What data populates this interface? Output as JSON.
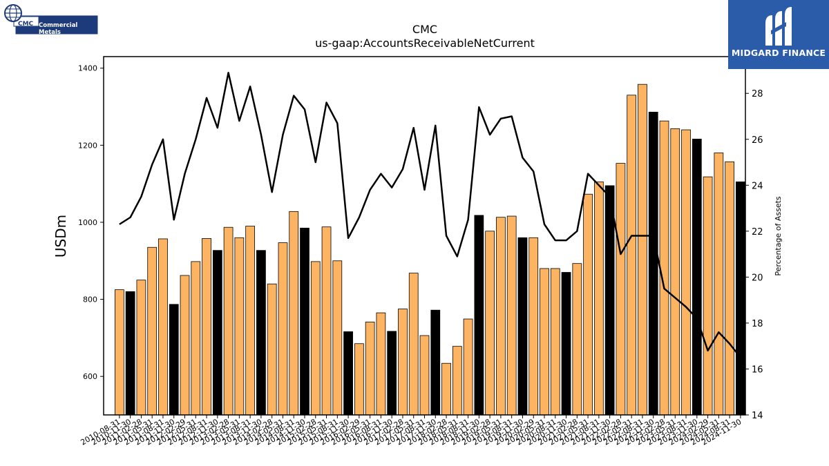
{
  "branding": {
    "left_logo_cmc": "CMC",
    "left_logo_name": "Commercial Metals",
    "right_logo_name": "MIDGARD FINANCE",
    "right_logo_bg": "#2a5caa",
    "left_logo_color": "#1d3a7a"
  },
  "chart_data": {
    "type": "bar",
    "title": "CMC",
    "subtitle": "us-gaap:AccountsReceivableNetCurrent",
    "ylabel": "USDm",
    "y2label": "Percentage of Assets",
    "ylim": [
      500,
      1430
    ],
    "y2lim": [
      14,
      29.6
    ],
    "yticks": [
      600,
      800,
      1000,
      1200,
      1400
    ],
    "y2ticks": [
      14,
      16,
      18,
      20,
      22,
      24,
      26,
      28
    ],
    "bar_colors": {
      "orange": "#fdb462",
      "black": "#000000"
    },
    "line_color": "#000000",
    "categories": [
      "2010-08-31",
      "2010-11-30",
      "2011-02-28",
      "2011-05-31",
      "2011-08-31",
      "2011-11-30",
      "2012-02-29",
      "2012-05-31",
      "2012-08-31",
      "2012-11-30",
      "2013-02-28",
      "2013-05-31",
      "2013-08-31",
      "2013-11-30",
      "2014-02-28",
      "2014-05-31",
      "2014-08-31",
      "2014-11-30",
      "2015-02-28",
      "2015-05-31",
      "2015-08-31",
      "2015-11-30",
      "2016-02-29",
      "2016-05-31",
      "2016-08-31",
      "2016-11-30",
      "2017-02-28",
      "2017-05-31",
      "2017-08-31",
      "2017-11-30",
      "2018-02-28",
      "2018-05-31",
      "2018-08-31",
      "2018-11-30",
      "2019-02-28",
      "2019-05-31",
      "2019-08-31",
      "2019-11-30",
      "2020-02-29",
      "2020-05-31",
      "2020-08-31",
      "2020-11-30",
      "2021-02-28",
      "2021-05-31",
      "2021-08-31",
      "2021-11-30",
      "2022-02-28",
      "2022-05-31",
      "2022-08-31",
      "2022-11-30",
      "2023-02-28",
      "2023-05-31",
      "2023-08-31",
      "2023-11-30",
      "2024-02-29",
      "2024-05-31",
      "2024-08-31",
      "2024-11-30"
    ],
    "tick_labels": [
      "2010-08-31",
      "2010-11-30",
      "2011-02-28",
      "2011-05-31",
      "2011-08-31",
      "2011-11-30",
      "2012-02-29",
      "2012-05-31",
      "2012-08-31",
      "2012-11-30",
      "2013-02-28",
      "2013-05-31",
      "2013-08-31",
      "2013-11-30",
      "2014-02-28",
      "2014-05-31",
      "2014-08-31",
      "2014-11-30",
      "2015-02-28",
      "2015-05-31",
      "2015-08-31",
      "2015-11-30",
      "2016-02-29",
      "2016-05-31",
      "2016-08-31",
      "2016-11-30",
      "2017-02-28",
      "2017-05-31",
      "2017-08-31",
      "2017-11-30",
      "2018-02-28",
      "2018-05-31",
      "2018-08-31",
      "2018-11-30",
      "2019-02-28",
      "2019-05-31",
      "2019-08-31",
      "2019-11-30",
      "2020-02-29",
      "2020-05-31",
      "2020-08-31",
      "2020-11-30",
      "2021-02-28",
      "2021-05-31",
      "2021-08-31",
      "2021-11-30",
      "2022-02-28",
      "2022-05-31",
      "2022-08-31",
      "2022-11-30",
      "2023-02-28",
      "2023-05-31",
      "2023-08-31",
      "2023-11-30",
      "2024-02-29",
      "2024-05-31",
      "2024-08-31",
      "2024-11-30"
    ],
    "series": [
      {
        "kind": "bar",
        "values": [
          825,
          820,
          850,
          935,
          957,
          787,
          862,
          898,
          958,
          927,
          987,
          960,
          990,
          927,
          840,
          947,
          1028,
          985,
          898,
          988,
          900,
          716,
          685,
          741,
          765,
          717,
          775,
          868,
          706,
          772,
          634,
          678,
          749,
          1018,
          977,
          1013,
          1016,
          960,
          960,
          880,
          880,
          870,
          893,
          1073,
          1105,
          1095,
          1153,
          1330,
          1358,
          1286,
          1263,
          1243,
          1240,
          1216,
          1118,
          1180,
          1157,
          1105
        ],
        "colors": [
          "orange",
          "black",
          "orange",
          "orange",
          "orange",
          "black",
          "orange",
          "orange",
          "orange",
          "black",
          "orange",
          "orange",
          "orange",
          "black",
          "orange",
          "orange",
          "orange",
          "black",
          "orange",
          "orange",
          "orange",
          "black",
          "orange",
          "orange",
          "orange",
          "black",
          "orange",
          "orange",
          "orange",
          "black",
          "orange",
          "orange",
          "orange",
          "black",
          "orange",
          "orange",
          "orange",
          "black",
          "orange",
          "orange",
          "orange",
          "black",
          "orange",
          "orange",
          "orange",
          "black",
          "orange",
          "orange",
          "orange",
          "black",
          "orange",
          "orange",
          "orange",
          "black",
          "orange",
          "orange",
          "orange",
          "black"
        ]
      },
      {
        "kind": "line",
        "axis": "right",
        "values": [
          22.3,
          22.6,
          23.5,
          24.9,
          26.0,
          22.5,
          24.5,
          26.0,
          27.8,
          26.5,
          28.9,
          26.8,
          28.3,
          26.2,
          23.7,
          26.2,
          27.9,
          27.3,
          25.0,
          27.6,
          26.7,
          21.7,
          22.6,
          23.8,
          24.5,
          23.9,
          24.7,
          26.5,
          23.8,
          26.6,
          21.8,
          20.9,
          22.5,
          27.4,
          26.2,
          26.9,
          27.0,
          25.2,
          24.6,
          22.3,
          21.6,
          21.6,
          22.0,
          24.5,
          24.0,
          23.5,
          21.0,
          21.8,
          21.8,
          21.8,
          19.5,
          19.1,
          18.7,
          18.2,
          16.8,
          17.6,
          17.1,
          16.5
        ]
      }
    ]
  }
}
